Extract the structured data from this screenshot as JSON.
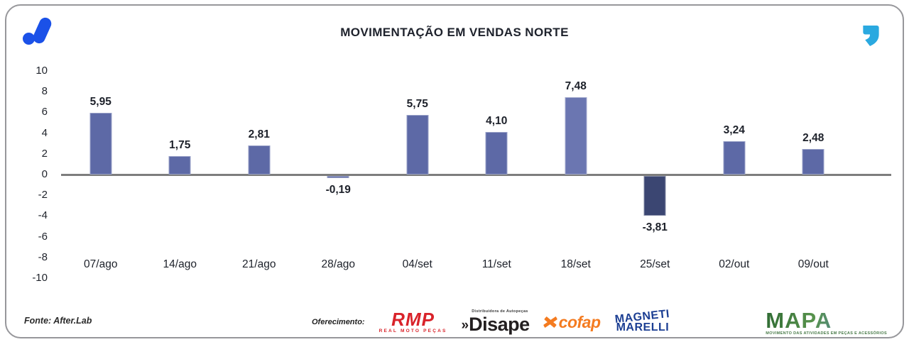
{
  "header": {
    "title": "MOVIMENTAÇÃO EM VENDAS NORTE"
  },
  "branding": {
    "afterlab_logo_color": "#1b51e8",
    "quote_mark_color": "#2aa9e0"
  },
  "chart_data": {
    "type": "bar",
    "title": "MOVIMENTAÇÃO EM VENDAS NORTE",
    "categories": [
      "07/ago",
      "14/ago",
      "21/ago",
      "28/ago",
      "04/set",
      "11/set",
      "18/set",
      "25/set",
      "02/out",
      "09/out"
    ],
    "values": [
      5.95,
      1.75,
      2.81,
      -0.19,
      5.75,
      4.1,
      7.48,
      -3.81,
      3.24,
      2.48
    ],
    "value_labels": [
      "5,95",
      "1,75",
      "2,81",
      "-0,19",
      "5,75",
      "4,10",
      "7,48",
      "-3,81",
      "3,24",
      "2,48"
    ],
    "bar_colors": [
      "#5d69a6",
      "#5d69a6",
      "#5d69a6",
      "#5d69a6",
      "#5d69a6",
      "#5d69a6",
      "#6b76b1",
      "#3b4672",
      "#5d69a6",
      "#5d69a6"
    ],
    "xlabel": "",
    "ylabel": "",
    "ylim": [
      -10,
      10
    ],
    "yticks": [
      10,
      8,
      6,
      4,
      2,
      0,
      -2,
      -4,
      -6,
      -8,
      -10
    ],
    "grid": false,
    "legend": null,
    "zero_line_color": "#7d7d7d"
  },
  "footer": {
    "source": "Fonte: After.Lab",
    "sponsorship_label": "Oferecimento:",
    "sponsors": {
      "rmp": {
        "wordmark": "RMP",
        "tagline": "REAL MOTO PEÇAS",
        "color": "#d9232a"
      },
      "disape": {
        "prefix": "»",
        "wordmark": "Disape",
        "tagline": "Distribuidora de Autopeças",
        "color": "#231f20"
      },
      "cofap": {
        "wordmark": "cofap",
        "color": "#f47b20"
      },
      "magneti_marelli": {
        "line1": "MAGNETI",
        "line2": "MARELLI",
        "color": "#1b3e93"
      }
    },
    "mapa": {
      "wordmark": "MAPA",
      "tagline": "MOVIMENTO DAS ATIVIDADES EM PEÇAS E ACESSÓRIOS",
      "colors": [
        "#2f6b33",
        "#58934d",
        "#4d7fae",
        "#2f5fa0"
      ]
    }
  }
}
